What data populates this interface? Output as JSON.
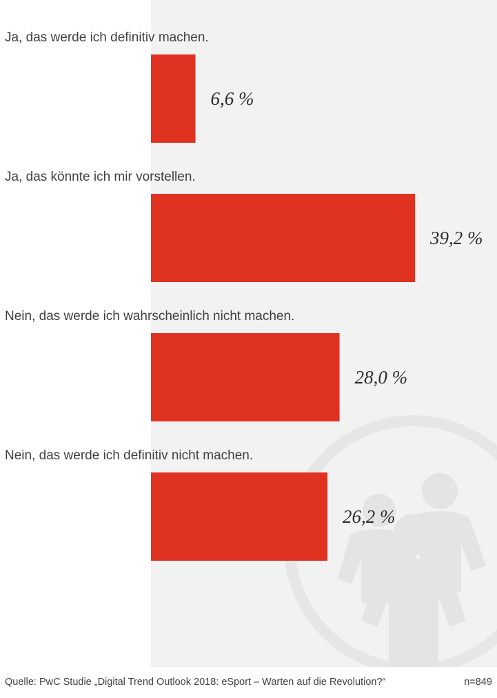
{
  "chart_data": {
    "type": "bar",
    "orientation": "horizontal",
    "categories": [
      "Ja, das werde ich definitiv machen.",
      "Ja, das könnte ich mir vorstellen.",
      "Nein, das werde ich wahrscheinlich nicht machen.",
      "Nein, das werde ich definitiv nicht machen."
    ],
    "values": [
      6.6,
      39.2,
      28.0,
      26.2
    ],
    "value_labels": [
      "6,6 %",
      "39,2 %",
      "28,0 %",
      "26,2 %"
    ],
    "unit": "%",
    "xlim": [
      0,
      40
    ],
    "grid": false,
    "legend": "none",
    "bar_color": "#e03220"
  },
  "footer": {
    "source": "Quelle: PwC Studie „Digital Trend Outlook 2018: eSport – Warten auf die Revolution?“",
    "sample": "n=849"
  },
  "watermark_icon": "people-group-icon"
}
